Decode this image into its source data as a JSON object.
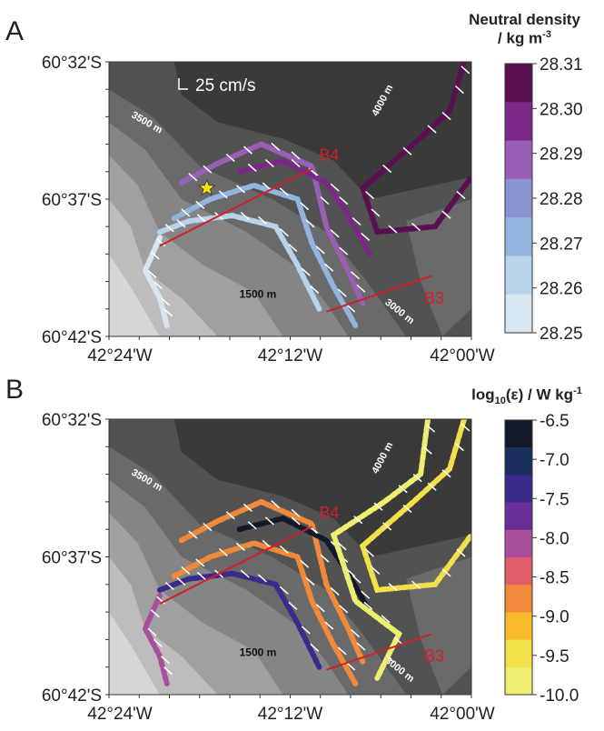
{
  "panels": [
    {
      "letter": "A",
      "colorbar": {
        "title_line1": "Neutral density",
        "title_line2": "/ kg m",
        "title_sup": "-3",
        "ticks": [
          "28.31",
          "28.30",
          "28.29",
          "28.28",
          "28.27",
          "28.26",
          "28.25"
        ],
        "colors": [
          "#5a1050",
          "#7a2a86",
          "#9a5fb5",
          "#8894cd",
          "#93b4de",
          "#b9d3ea",
          "#d7e6f1"
        ]
      },
      "scale_label": "25 cm/s",
      "star": true
    },
    {
      "letter": "B",
      "colorbar": {
        "title_pre": "log",
        "title_sub": "10",
        "title_post": "(ε) / W kg",
        "title_sup": "-1",
        "ticks": [
          "-6.5",
          "-7.0",
          "-7.5",
          "-8.0",
          "-8.5",
          "-9.0",
          "-9.5",
          "-10.0"
        ],
        "colors": [
          "#121a2a",
          "#1a2e60",
          "#3a2a8a",
          "#6a2f96",
          "#a84e9a",
          "#e05e6a",
          "#f08a3a",
          "#f8bc2a",
          "#f2e04a",
          "#eeee70"
        ]
      },
      "star": false
    }
  ],
  "map": {
    "y_ticks": [
      "60°32'S",
      "60°37'S",
      "60°42'S"
    ],
    "x_ticks": [
      "42°24'W",
      "42°12'W",
      "42°00'W"
    ],
    "depth_labels": [
      "4000 m",
      "3500 m",
      "1500 m",
      "3000 m"
    ],
    "sections": [
      "B4",
      "B3"
    ],
    "shade_colors": [
      "#3a3a3a",
      "#525252",
      "#6a6a6a",
      "#858585",
      "#a0a0a0",
      "#bdbdbd",
      "#d6d6d6"
    ],
    "section_color": "#d0202a",
    "star_color": "#f5e21a"
  }
}
